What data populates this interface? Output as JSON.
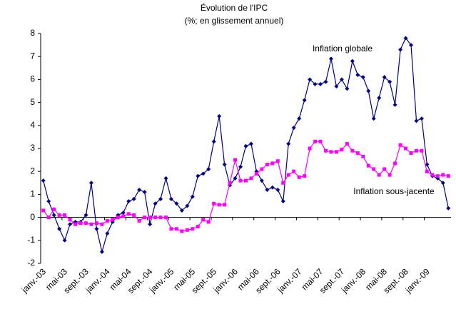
{
  "chart_data": {
    "type": "line",
    "title": "Évolution de l'IPC",
    "subtitle": "(%; en glissement annuel)",
    "annotations": [
      "Inflation globale",
      "Inflation sous-jacente"
    ],
    "categories": [
      "janv.-03",
      null,
      null,
      null,
      "mai-03",
      null,
      null,
      null,
      "sept.-03",
      null,
      null,
      null,
      "janv.-04",
      null,
      null,
      null,
      "mai-04",
      null,
      null,
      null,
      "sept.-04",
      null,
      null,
      null,
      "janv.-05",
      null,
      null,
      null,
      "mai-05",
      null,
      null,
      null,
      "sept.-05",
      null,
      null,
      null,
      "janv.-06",
      null,
      null,
      null,
      "mai-06",
      null,
      null,
      null,
      "sept.-06",
      null,
      null,
      null,
      "janv.-07",
      null,
      null,
      null,
      "mai-07",
      null,
      null,
      null,
      "sept.-07",
      null,
      null,
      null,
      "janv.-08",
      null,
      null,
      null,
      "mai-08",
      null,
      null,
      null,
      "sept.-08",
      null,
      null,
      null,
      "janv.-09",
      null,
      null,
      null,
      null
    ],
    "series": [
      {
        "name": "Inflation globale",
        "color": "#000080",
        "marker": "diamond",
        "values": [
          1.6,
          0.7,
          0.1,
          -0.5,
          -1.0,
          -0.3,
          -0.2,
          -0.2,
          0.1,
          1.5,
          -0.5,
          -1.5,
          -0.7,
          -0.2,
          0.1,
          0.2,
          0.7,
          0.8,
          1.2,
          1.1,
          -0.3,
          0.6,
          0.8,
          1.7,
          0.8,
          0.6,
          0.3,
          0.5,
          0.9,
          1.8,
          1.9,
          2.1,
          3.3,
          4.4,
          2.3,
          1.4,
          1.7,
          2.2,
          3.1,
          3.2,
          2.0,
          1.6,
          1.2,
          1.3,
          1.2,
          0.7,
          3.2,
          3.9,
          4.3,
          5.1,
          6.0,
          5.8,
          5.8,
          5.9,
          6.9,
          5.7,
          6.0,
          5.6,
          6.8,
          6.2,
          6.1,
          5.5,
          4.3,
          5.2,
          6.1,
          5.9,
          4.9,
          7.3,
          7.8,
          7.5,
          4.2,
          4.3,
          2.3,
          1.8,
          1.7,
          1.5,
          0.4
        ]
      },
      {
        "name": "Inflation sous-jacente",
        "color": "#ff00ff",
        "marker": "square",
        "values": [
          0.3,
          0.0,
          0.35,
          0.1,
          0.1,
          -0.1,
          -0.3,
          -0.25,
          -0.25,
          -0.3,
          -0.25,
          -0.3,
          -0.15,
          -0.1,
          0.0,
          0.05,
          0.15,
          0.1,
          -0.15,
          0.0,
          0.0,
          0.0,
          0.0,
          0.0,
          -0.5,
          -0.5,
          -0.6,
          -0.55,
          -0.5,
          -0.4,
          -0.1,
          -0.2,
          0.6,
          0.55,
          0.55,
          1.5,
          2.5,
          1.6,
          1.6,
          1.7,
          1.9,
          2.1,
          2.3,
          2.35,
          2.45,
          1.5,
          1.85,
          2.0,
          1.75,
          1.8,
          3.0,
          3.3,
          3.3,
          2.9,
          2.85,
          2.85,
          2.95,
          3.2,
          2.9,
          2.8,
          2.65,
          2.25,
          2.1,
          1.85,
          2.1,
          1.85,
          2.35,
          3.15,
          3.0,
          2.8,
          2.9,
          2.9,
          2.0,
          1.85,
          1.8,
          1.85,
          1.8
        ]
      }
    ],
    "ylim": [
      -2,
      8
    ],
    "yticks": [
      -2,
      -1,
      0,
      1,
      2,
      3,
      4,
      5,
      6,
      7,
      8
    ],
    "grid": false
  }
}
